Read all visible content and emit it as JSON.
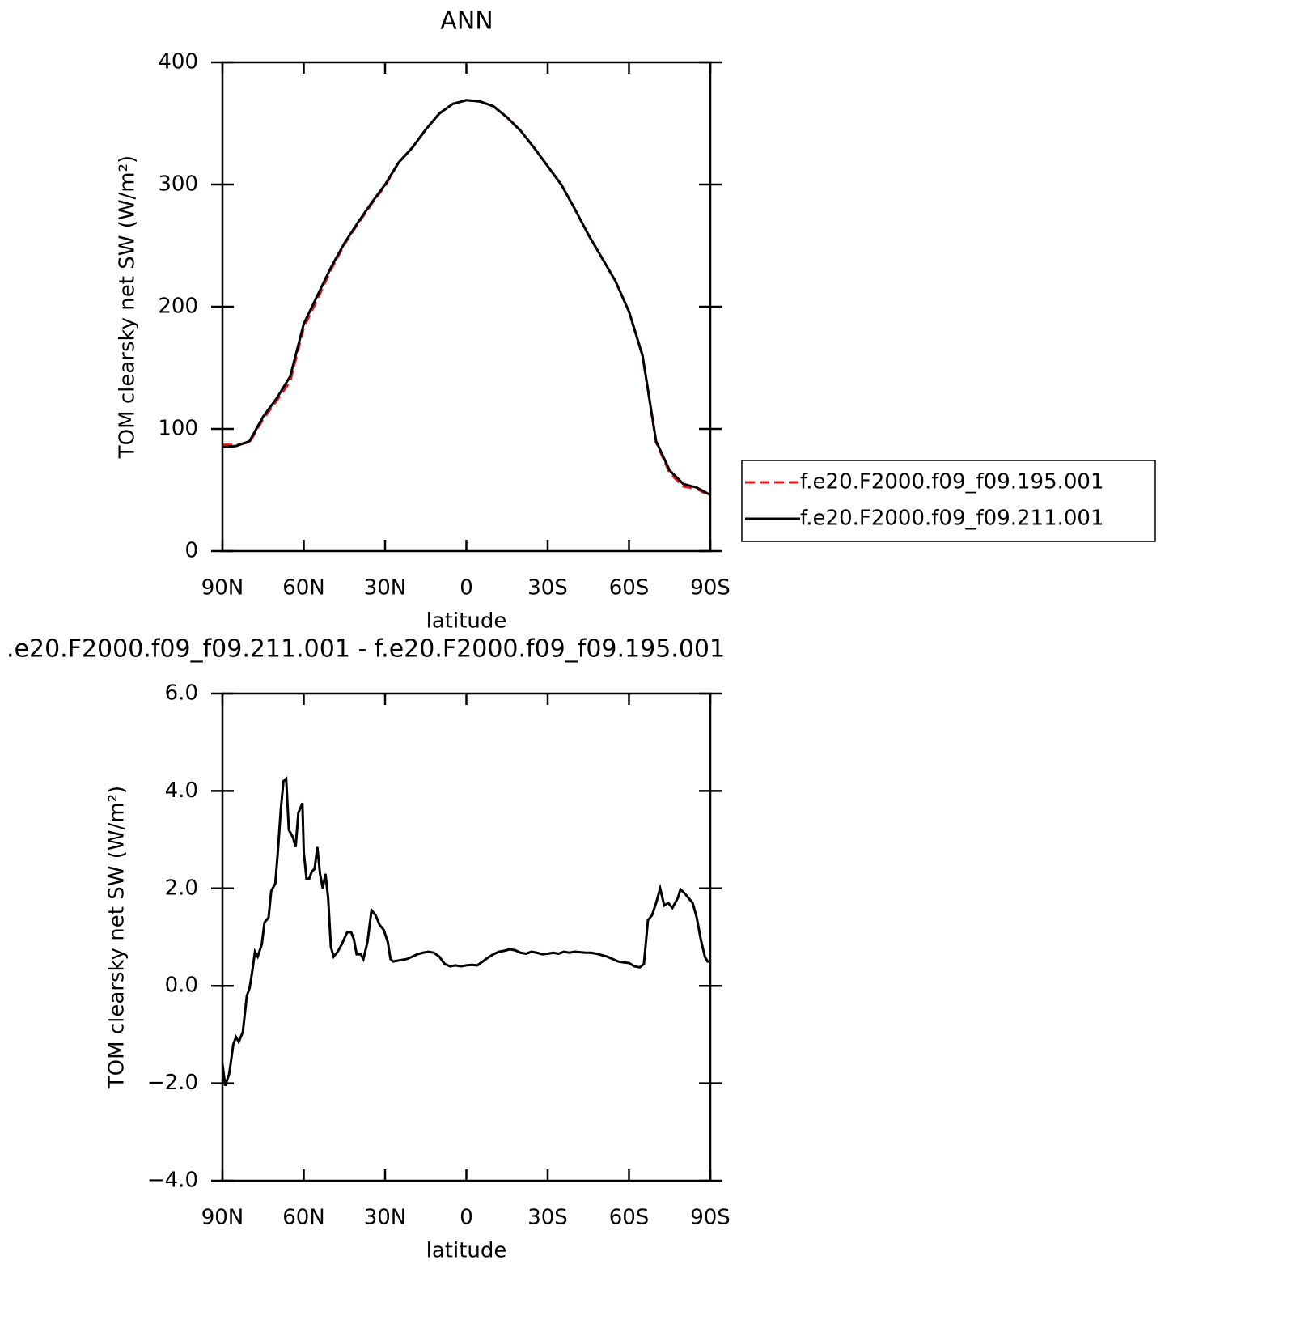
{
  "chart_data": [
    {
      "type": "line",
      "title": "ANN",
      "xlabel": "latitude",
      "ylabel": "TOM clearsky net SW (W/m²)",
      "x": [
        90,
        85,
        80,
        75,
        70,
        65,
        60,
        55,
        50,
        45,
        40,
        35,
        30,
        25,
        20,
        15,
        10,
        5,
        0,
        -5,
        -10,
        -15,
        -20,
        -25,
        -30,
        -35,
        -40,
        -45,
        -50,
        -55,
        -60,
        -65,
        -70,
        -75,
        -80,
        -85,
        -90
      ],
      "series": [
        {
          "name": "f.e20.F2000.f09_f09.195.001",
          "color": "#e8191c",
          "line_style": "dashed",
          "values": [
            87,
            87,
            89,
            108,
            123,
            139,
            183,
            206,
            230,
            251,
            268,
            284,
            299,
            318,
            330,
            345,
            358,
            366,
            369,
            368,
            364,
            355,
            344,
            330,
            315,
            300,
            280,
            259,
            240,
            221,
            196,
            160,
            89,
            64,
            53,
            51,
            45
          ]
        },
        {
          "name": "f.e20.F2000.f09_f09.211.001",
          "color": "#000000",
          "line_style": "solid",
          "values": [
            85,
            86,
            90,
            110,
            125,
            143,
            186,
            209,
            232,
            252,
            269,
            285,
            300,
            318,
            330,
            345,
            358,
            366,
            369,
            368,
            364,
            355,
            344,
            330,
            315,
            300,
            280,
            259,
            240,
            221,
            196,
            160,
            90,
            66,
            55,
            52,
            46
          ]
        }
      ],
      "xlim": [
        90,
        -90
      ],
      "xticks": [
        {
          "value": 90,
          "label": "90N"
        },
        {
          "value": 60,
          "label": "60N"
        },
        {
          "value": 30,
          "label": "30N"
        },
        0,
        {
          "value": -30,
          "label": "30S"
        },
        {
          "value": -60,
          "label": "60S"
        },
        {
          "value": -90,
          "label": "90S"
        }
      ],
      "ylim": [
        0,
        400
      ],
      "yticks": [
        0,
        100,
        200,
        300,
        400
      ],
      "legend": "right"
    },
    {
      "type": "line",
      "title": ".e20.F2000.f09_f09.211.001 - f.e20.F2000.f09_f09.195.001",
      "xlabel": "latitude",
      "ylabel": "TOM clearsky net SW (W/m²)",
      "x": [
        90,
        89,
        87.5,
        86,
        85,
        84,
        82.5,
        81,
        80,
        79,
        78,
        77,
        75.5,
        74.5,
        73,
        72,
        70.5,
        69.5,
        68.5,
        67.5,
        66.5,
        65.5,
        64,
        63,
        62,
        60.5,
        60,
        59,
        58,
        57,
        56,
        55,
        54,
        53,
        52,
        51,
        50,
        49,
        47.5,
        46,
        44,
        42.5,
        41.5,
        40.5,
        39,
        38,
        36.5,
        35,
        33.5,
        32,
        30.5,
        29,
        28,
        27,
        25,
        22,
        20,
        18,
        16,
        14,
        12,
        10,
        8,
        6,
        4,
        2,
        0,
        -2,
        -4,
        -6,
        -8,
        -10,
        -12,
        -14,
        -16,
        -18,
        -20,
        -22,
        -24,
        -26,
        -28,
        -30,
        -32,
        -34,
        -36,
        -38,
        -40,
        -42,
        -44,
        -46,
        -48,
        -50,
        -52,
        -54,
        -56,
        -58,
        -60,
        -62,
        -64,
        -65.5,
        -67,
        -68.5,
        -70,
        -71.5,
        -73,
        -74.5,
        -76,
        -78,
        -79,
        -80.5,
        -82,
        -83.5,
        -85,
        -86.5,
        -88,
        -89,
        -90
      ],
      "series": [
        {
          "color": "#000000",
          "line_style": "solid",
          "values": [
            -1.6,
            -2.05,
            -1.8,
            -1.2,
            -1.05,
            -1.15,
            -0.95,
            -0.2,
            -0.05,
            0.3,
            0.7,
            0.6,
            0.85,
            1.3,
            1.4,
            1.95,
            2.1,
            2.8,
            3.6,
            4.2,
            4.25,
            3.2,
            3.05,
            2.85,
            3.55,
            3.75,
            2.75,
            2.2,
            2.2,
            2.35,
            2.4,
            2.85,
            2.3,
            2.0,
            2.3,
            1.8,
            0.8,
            0.6,
            0.7,
            0.85,
            1.1,
            1.1,
            0.95,
            0.65,
            0.65,
            0.55,
            0.9,
            1.55,
            1.45,
            1.25,
            1.15,
            0.9,
            0.55,
            0.5,
            0.52,
            0.55,
            0.6,
            0.65,
            0.68,
            0.7,
            0.68,
            0.6,
            0.45,
            0.4,
            0.42,
            0.4,
            0.42,
            0.43,
            0.42,
            0.5,
            0.58,
            0.65,
            0.7,
            0.72,
            0.75,
            0.73,
            0.68,
            0.66,
            0.7,
            0.68,
            0.65,
            0.66,
            0.68,
            0.66,
            0.7,
            0.68,
            0.7,
            0.69,
            0.68,
            0.68,
            0.66,
            0.63,
            0.6,
            0.55,
            0.5,
            0.48,
            0.47,
            0.4,
            0.38,
            0.45,
            1.35,
            1.45,
            1.7,
            2.0,
            1.65,
            1.7,
            1.6,
            1.8,
            1.98,
            1.9,
            1.8,
            1.7,
            1.4,
            0.95,
            0.6,
            0.5,
            0.5
          ]
        }
      ],
      "xlim": [
        90,
        -90
      ],
      "xticks": [
        {
          "value": 90,
          "label": "90N"
        },
        {
          "value": 60,
          "label": "60N"
        },
        {
          "value": 30,
          "label": "30N"
        },
        0,
        {
          "value": -30,
          "label": "30S"
        },
        {
          "value": -60,
          "label": "60S"
        },
        {
          "value": -90,
          "label": "90S"
        }
      ],
      "ylim": [
        -4,
        6
      ],
      "yticks": [
        {
          "value": -4,
          "label": "−4.0"
        },
        {
          "value": -2,
          "label": "−2.0"
        },
        {
          "value": 0,
          "label": "0.0"
        },
        {
          "value": 2,
          "label": "2.0"
        },
        {
          "value": 4,
          "label": "4.0"
        },
        {
          "value": 6,
          "label": "6.0"
        }
      ]
    }
  ]
}
